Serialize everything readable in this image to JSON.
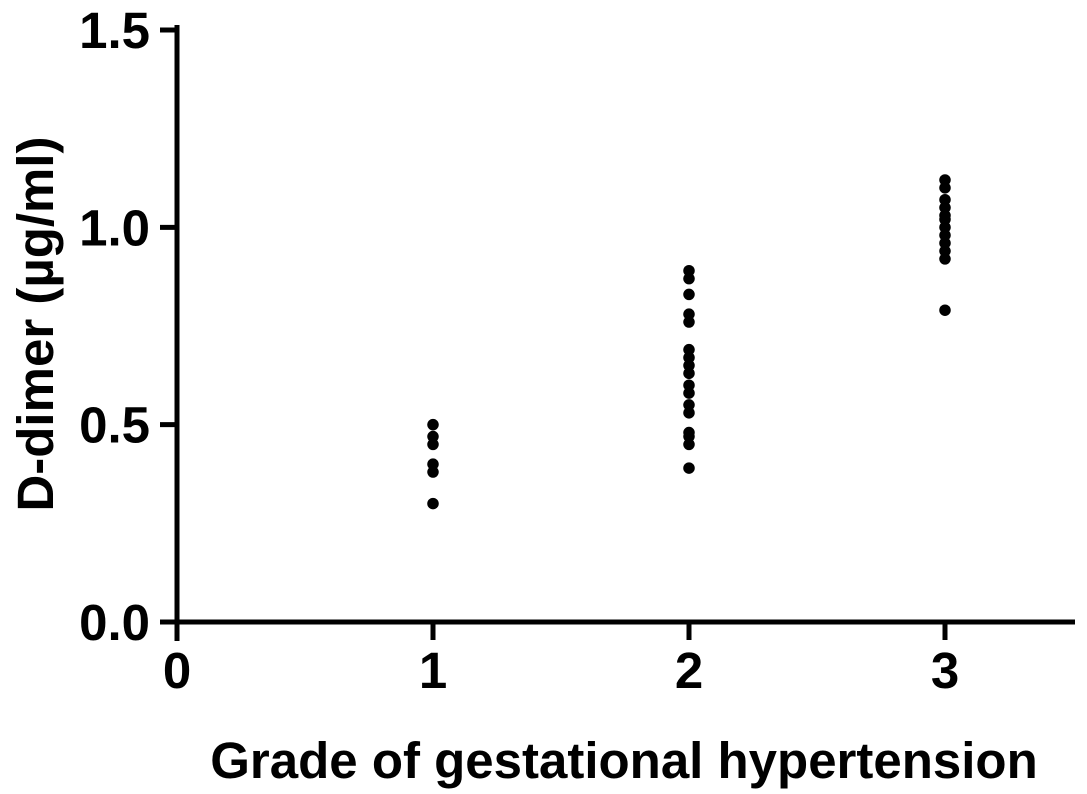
{
  "figure": {
    "background": "#ffffff",
    "ink": "#000000"
  },
  "chart_data": {
    "type": "scatter",
    "title": "",
    "xlabel": "Grade of gestational hypertension",
    "ylabel": "D-dimer (µg/ml)",
    "xlim": [
      0,
      3.5
    ],
    "ylim": [
      0,
      1.5
    ],
    "grid": false,
    "legend": false,
    "marker": {
      "shape": "circle",
      "color": "#000000"
    },
    "xticks": {
      "values": [
        0,
        1,
        2,
        3
      ],
      "labels": [
        "0",
        "1",
        "2",
        "3"
      ]
    },
    "yticks": {
      "values": [
        0,
        0.5,
        1.0,
        1.5
      ],
      "labels": [
        "0.0",
        "0.5",
        "1.0",
        "1.5"
      ]
    },
    "series": [
      {
        "name": "Grade 1",
        "x": 1,
        "values": [
          0.5,
          0.47,
          0.45,
          0.4,
          0.38,
          0.3
        ]
      },
      {
        "name": "Grade 2",
        "x": 2,
        "values": [
          0.89,
          0.87,
          0.83,
          0.78,
          0.76,
          0.69,
          0.67,
          0.65,
          0.63,
          0.6,
          0.58,
          0.55,
          0.53,
          0.48,
          0.47,
          0.45,
          0.39
        ]
      },
      {
        "name": "Grade 3",
        "x": 3,
        "values": [
          1.12,
          1.1,
          1.07,
          1.05,
          1.03,
          1.02,
          1.0,
          0.98,
          0.96,
          0.94,
          0.92,
          0.79
        ]
      }
    ]
  }
}
